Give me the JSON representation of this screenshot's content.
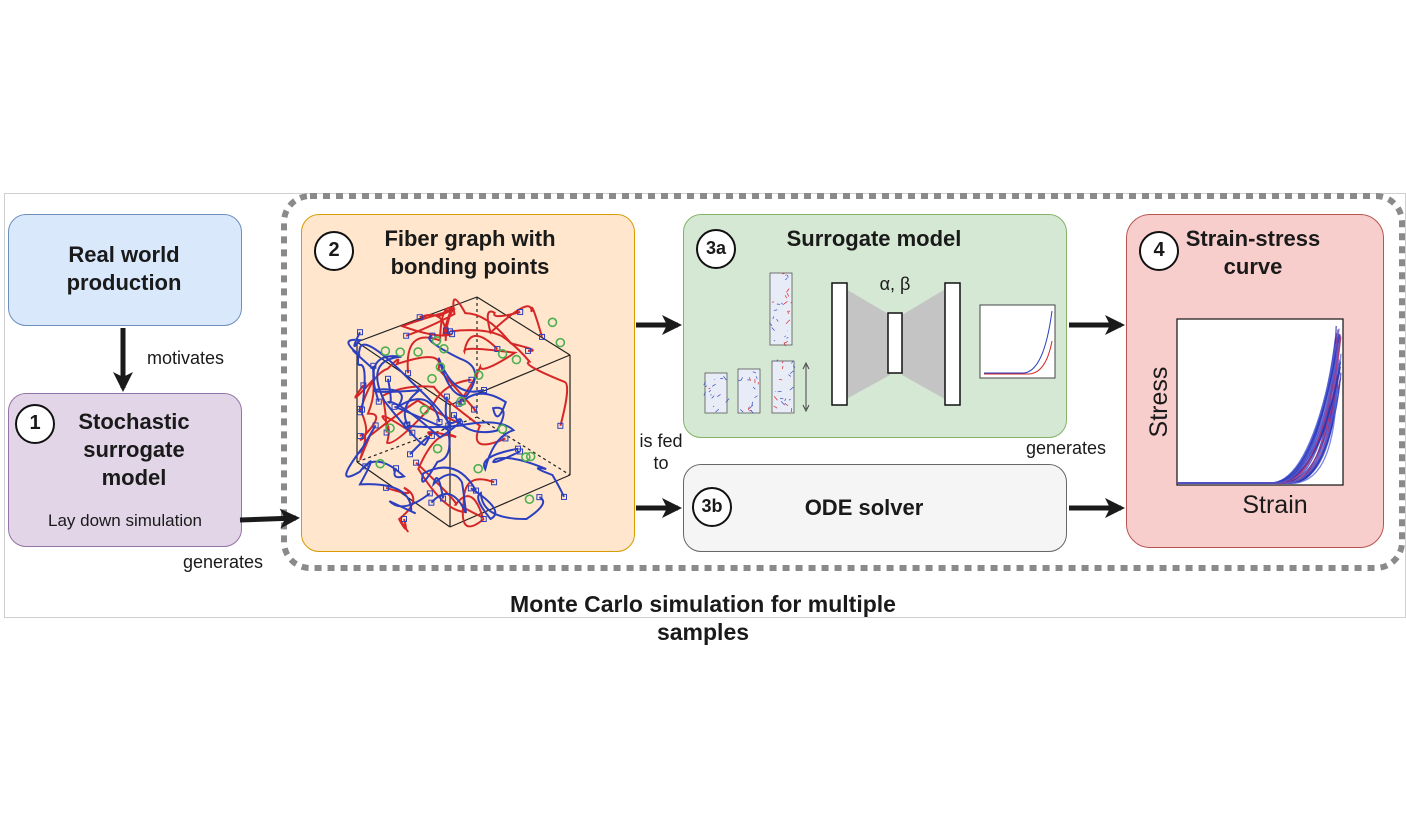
{
  "blocks": {
    "real_world": {
      "title": "Real world production",
      "color": "#dae8fc",
      "border": "#6c8ebf"
    },
    "stochastic": {
      "number": "1",
      "title": "Stochastic surrogate model",
      "subtitle": "Lay down simulation",
      "color": "#e1d5e7",
      "border": "#9673a6"
    },
    "fiber": {
      "number": "2",
      "title": "Fiber graph with bonding points",
      "color": "#ffe6cc",
      "border": "#d79b00"
    },
    "surrogate": {
      "number": "3a",
      "title": "Surrogate model",
      "params": "α, β",
      "color": "#d5e8d4",
      "border": "#82b366"
    },
    "ode": {
      "number": "3b",
      "title": "ODE solver",
      "color": "#f5f5f5",
      "border": "#666666"
    },
    "strain": {
      "number": "4",
      "title": "Strain-stress curve",
      "color": "#f8cecc",
      "border": "#b85450",
      "xlabel": "Strain",
      "ylabel": "Stress"
    }
  },
  "edges": {
    "motivates": "motivates",
    "generates_left": "generates",
    "is_fed_to": "is fed to",
    "generates_right": "generates"
  },
  "group_label": "Monte Carlo simulation for multiple samples"
}
